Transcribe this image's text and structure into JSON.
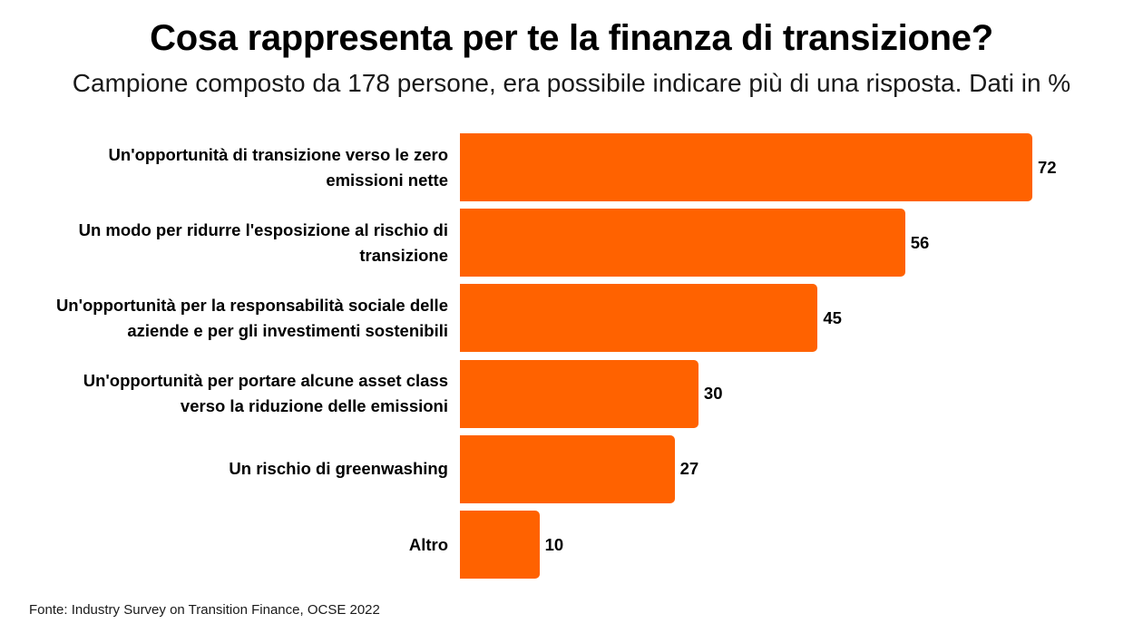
{
  "header": {
    "title": "Cosa rappresenta per te la finanza di transizione?",
    "subtitle": "Campione composto da 178 persone, era possibile indicare più di una risposta. Dati in %"
  },
  "source": "Fonte: Industry Survey on Transition Finance, OCSE 2022",
  "colors": {
    "bar": "#FF6200"
  },
  "chart_data": {
    "type": "bar",
    "orientation": "horizontal",
    "title": "Cosa rappresenta per te la finanza di transizione?",
    "subtitle": "Campione composto da 178 persone, era possibile indicare più di una risposta. Dati in %",
    "categories": [
      [
        "Un'opportunità di transizione verso le zero",
        "emissioni nette"
      ],
      [
        "Un modo per ridurre l'esposizione al rischio di",
        "transizione"
      ],
      [
        "Un'opportunità per la responsabilità sociale delle",
        "aziende e per gli investimenti sostenibili"
      ],
      [
        "Un'opportunità per portare alcune asset class",
        "verso la riduzione delle emissioni"
      ],
      [
        "Un rischio di greenwashing"
      ],
      [
        "Altro"
      ]
    ],
    "values": [
      72,
      56,
      45,
      30,
      27,
      10
    ],
    "value_labels": [
      "72",
      "56",
      "45",
      "30",
      "27",
      "10"
    ],
    "xlim": [
      0,
      72
    ],
    "xlabel": "",
    "ylabel": "",
    "grid": false,
    "legend": "none"
  }
}
